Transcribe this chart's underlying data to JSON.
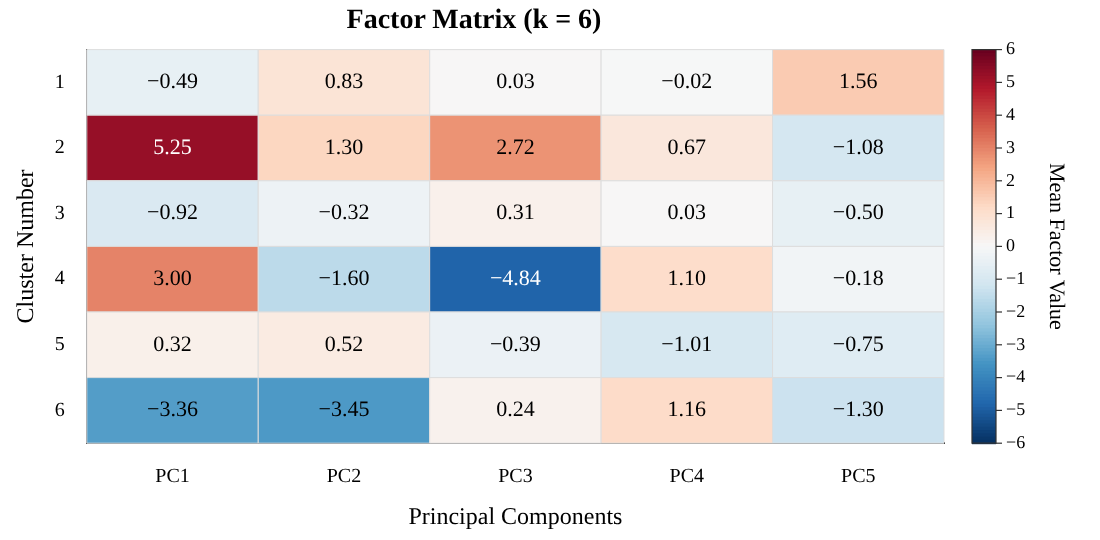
{
  "chart_data": {
    "type": "heatmap",
    "title": "Factor Matrix (k = 6)",
    "xlabel": "Principal Components",
    "ylabel": "Cluster Number",
    "clabel": "Mean Factor Value",
    "categories": [
      "PC1",
      "PC2",
      "PC3",
      "PC4",
      "PC5"
    ],
    "y_categories": [
      "1",
      "2",
      "3",
      "4",
      "5",
      "6"
    ],
    "cells": [
      [
        -0.49,
        0.83,
        0.03,
        -0.02,
        1.56
      ],
      [
        5.25,
        1.3,
        2.72,
        0.67,
        -1.08
      ],
      [
        -0.92,
        -0.32,
        0.31,
        0.03,
        -0.5
      ],
      [
        3.0,
        -1.6,
        -4.84,
        1.1,
        -0.18
      ],
      [
        0.32,
        0.52,
        -0.39,
        -1.01,
        -0.75
      ],
      [
        -3.36,
        -3.45,
        0.24,
        1.16,
        -1.3
      ]
    ],
    "cell_labels": [
      [
        "−0.49",
        "0.83",
        "0.03",
        "−0.02",
        "1.56"
      ],
      [
        "5.25",
        "1.30",
        "2.72",
        "0.67",
        "−1.08"
      ],
      [
        "−0.92",
        "−0.32",
        "0.31",
        "0.03",
        "−0.50"
      ],
      [
        "3.00",
        "−1.60",
        "−4.84",
        "1.10",
        "−0.18"
      ],
      [
        "0.32",
        "0.52",
        "−0.39",
        "−1.01",
        "−0.75"
      ],
      [
        "−3.36",
        "−3.45",
        "0.24",
        "1.16",
        "−1.30"
      ]
    ],
    "clim": [
      -6,
      6
    ],
    "cticks": [
      {
        "value": -6,
        "label": "−6"
      },
      {
        "value": -5,
        "label": "−5"
      },
      {
        "value": -4,
        "label": "−4"
      },
      {
        "value": -3,
        "label": "−3"
      },
      {
        "value": -2,
        "label": "−2"
      },
      {
        "value": -1,
        "label": "−1"
      },
      0,
      1,
      2,
      3,
      4,
      5,
      6
    ]
  }
}
